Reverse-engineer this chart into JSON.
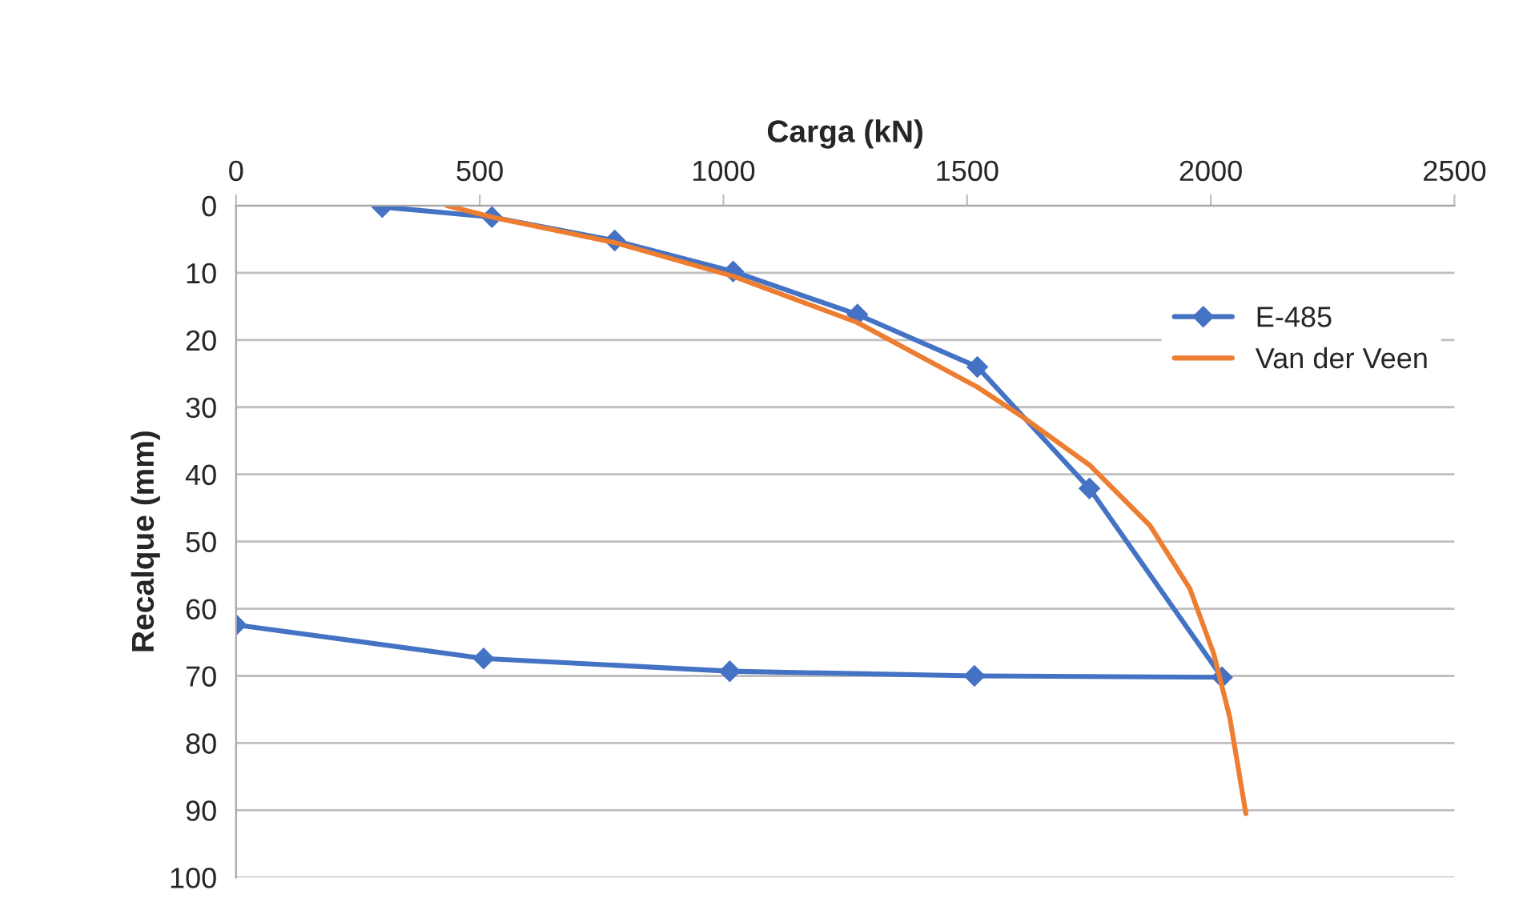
{
  "chart_data": {
    "type": "line",
    "xlabel": "Carga (kN)",
    "ylabel": "Recalque (mm)",
    "xlim": [
      0,
      2500
    ],
    "xticks": [
      0,
      500,
      1000,
      1500,
      2000,
      2500
    ],
    "ylim": [
      100,
      0
    ],
    "yticks": [
      0,
      10,
      20,
      30,
      40,
      50,
      60,
      70,
      80,
      90,
      100
    ],
    "grid": "y",
    "legend": "right",
    "series": [
      {
        "name": "E-485",
        "color": "#4472c4",
        "marker": "diamond",
        "x": [
          300,
          525,
          777,
          1020,
          1275,
          1521,
          1751,
          2023,
          1515,
          1013,
          508,
          0
        ],
        "values": [
          0.2,
          1.7,
          5.2,
          9.8,
          16.2,
          24,
          42.1,
          70.2,
          70,
          69.3,
          67.4,
          62.4
        ]
      },
      {
        "name": "Van der Veen",
        "color": "#ed7d31",
        "marker": "none",
        "x": [
          433,
          525,
          777,
          1020,
          1275,
          1521,
          1613,
          1751,
          1875,
          1957,
          2006,
          2039,
          2072
        ],
        "values": [
          0,
          1.7,
          5.5,
          10.5,
          17.4,
          27,
          31.4,
          38.6,
          47.6,
          57,
          66.7,
          76.2,
          90.5
        ]
      }
    ]
  }
}
